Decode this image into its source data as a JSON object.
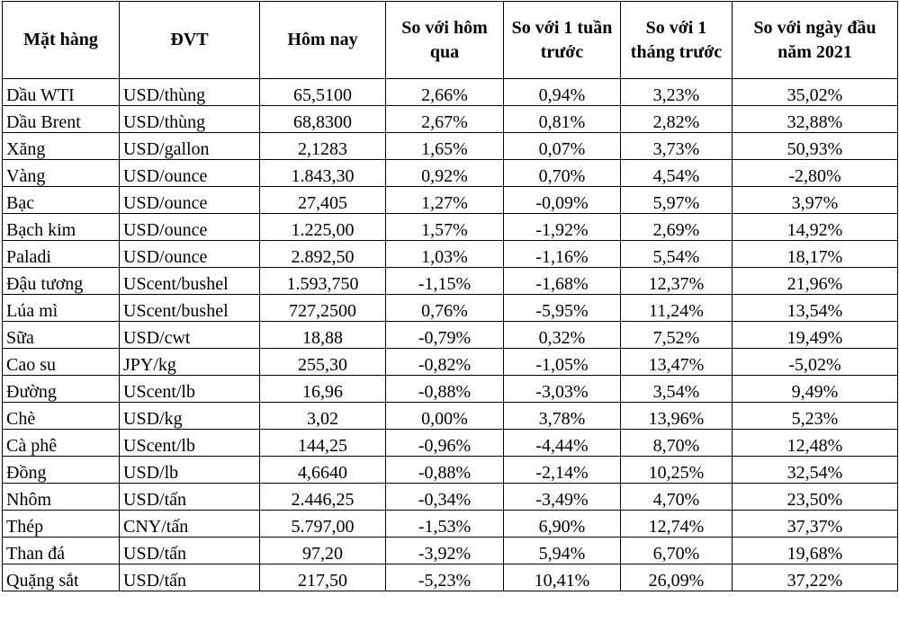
{
  "headers": [
    "Mặt hàng",
    "ĐVT",
    "Hôm nay",
    "So với hôm qua",
    "So với 1 tuần trước",
    "So với 1 tháng trước",
    "So với ngày đầu năm 2021"
  ],
  "rows": [
    [
      "Dầu WTI",
      "USD/thùng",
      "65,5100",
      "2,66%",
      "0,94%",
      "3,23%",
      "35,02%"
    ],
    [
      "Dầu Brent",
      "USD/thùng",
      "68,8300",
      "2,67%",
      "0,81%",
      "2,82%",
      "32,88%"
    ],
    [
      "Xăng",
      "USD/gallon",
      "2,1283",
      "1,65%",
      "0,07%",
      "3,73%",
      "50,93%"
    ],
    [
      "Vàng",
      "USD/ounce",
      "1.843,30",
      "0,92%",
      "0,70%",
      "4,54%",
      "-2,80%"
    ],
    [
      "Bạc",
      "USD/ounce",
      "27,405",
      "1,27%",
      "-0,09%",
      "5,97%",
      "3,97%"
    ],
    [
      "Bạch kim",
      "USD/ounce",
      "1.225,00",
      "1,57%",
      "-1,92%",
      "2,69%",
      "14,92%"
    ],
    [
      "Paladi",
      "USD/ounce",
      "2.892,50",
      "1,03%",
      "-1,16%",
      "5,54%",
      "18,17%"
    ],
    [
      "Đậu tương",
      "UScent/bushel",
      "1.593,750",
      "-1,15%",
      "-1,68%",
      "12,37%",
      "21,96%"
    ],
    [
      "Lúa mì",
      "UScent/bushel",
      "727,2500",
      "0,76%",
      "-5,95%",
      "11,24%",
      "13,54%"
    ],
    [
      "Sữa",
      "USD/cwt",
      "18,88",
      "-0,79%",
      "0,32%",
      "7,52%",
      "19,49%"
    ],
    [
      "Cao su",
      "JPY/kg",
      "255,30",
      "-0,82%",
      "-1,05%",
      "13,47%",
      "-5,02%"
    ],
    [
      "Đường",
      "UScent/lb",
      "16,96",
      "-0,88%",
      "-3,03%",
      "3,54%",
      "9,49%"
    ],
    [
      "Chè",
      "USD/kg",
      "3,02",
      "0,00%",
      "3,78%",
      "13,96%",
      "5,23%"
    ],
    [
      "Cà phê",
      "UScent/lb",
      "144,25",
      "-0,96%",
      "-4,44%",
      "8,70%",
      "12,48%"
    ],
    [
      "Đồng",
      "USD/lb",
      "4,6640",
      "-0,88%",
      "-2,14%",
      "10,25%",
      "32,54%"
    ],
    [
      "Nhôm",
      "USD/tấn",
      "2.446,25",
      "-0,34%",
      "-3,49%",
      "4,70%",
      "23,50%"
    ],
    [
      "Thép",
      "CNY/tấn",
      "5.797,00",
      "-1,53%",
      "6,90%",
      "12,74%",
      "37,37%"
    ],
    [
      "Than đá",
      "USD/tấn",
      "97,20",
      "-3,92%",
      "5,94%",
      "6,70%",
      "19,68%"
    ],
    [
      "Quặng sắt",
      "USD/tấn",
      "217,50",
      "-5,23%",
      "10,41%",
      "26,09%",
      "37,22%"
    ]
  ]
}
